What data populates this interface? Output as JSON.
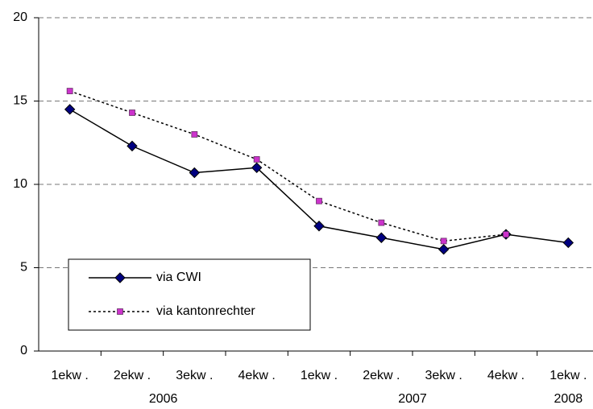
{
  "chart_data": {
    "type": "line",
    "categories": [
      "1ekw .",
      "2ekw .",
      "3ekw .",
      "4ekw .",
      "1ekw .",
      "2ekw .",
      "3ekw .",
      "4ekw .",
      "1ekw ."
    ],
    "groups": [
      {
        "label": "2006",
        "span": [
          0,
          3
        ]
      },
      {
        "label": "2007",
        "span": [
          4,
          7
        ]
      },
      {
        "label": "2008",
        "span": [
          8,
          8
        ]
      }
    ],
    "series": [
      {
        "name": "via CWI",
        "color": "#000080",
        "line": "solid",
        "marker": "diamond",
        "values": [
          14.5,
          12.3,
          10.7,
          11.0,
          7.5,
          6.8,
          6.1,
          7.0,
          6.5
        ]
      },
      {
        "name": "via kantonrechter",
        "color": "#cc33cc",
        "line": "dotted",
        "marker": "square",
        "values": [
          15.6,
          14.3,
          13.0,
          11.5,
          9.0,
          7.7,
          6.6,
          7.0,
          null
        ]
      }
    ],
    "ylim": [
      0,
      20
    ],
    "yticks": [
      0,
      5,
      10,
      15,
      20
    ],
    "grid": true
  }
}
